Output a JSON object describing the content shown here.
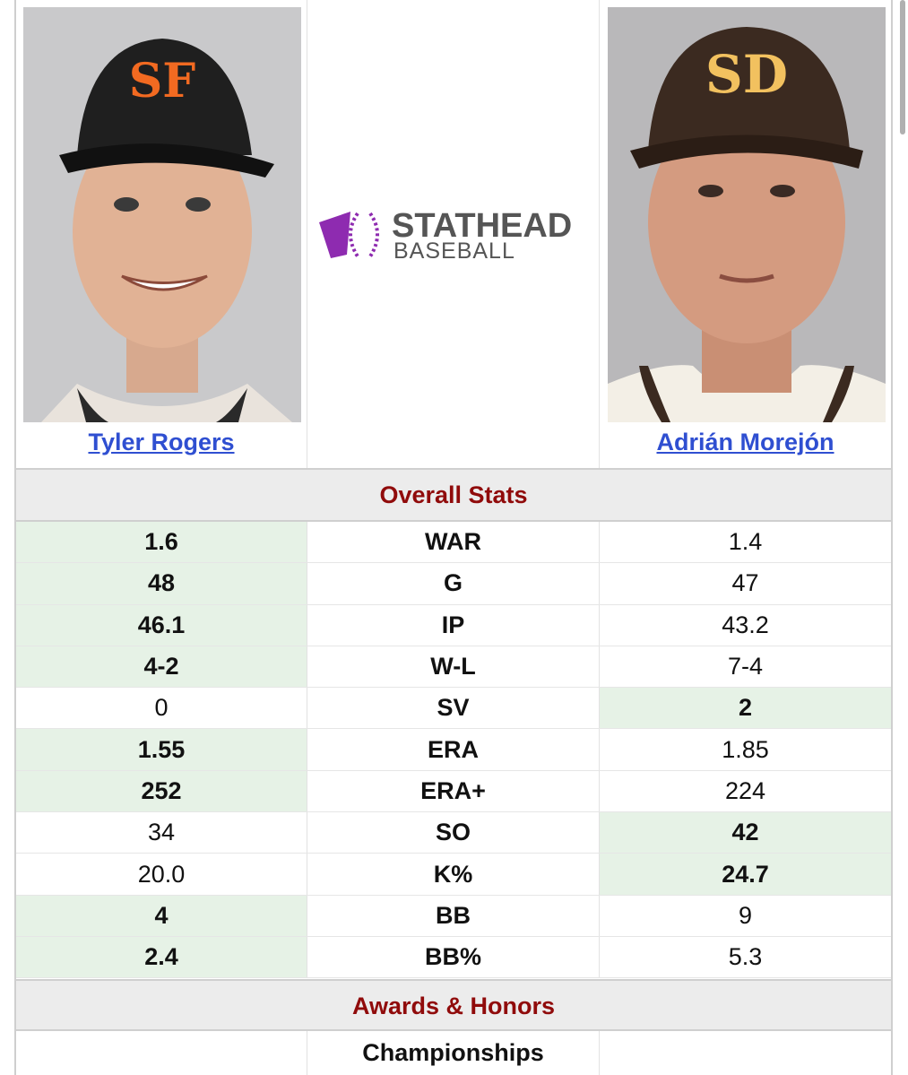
{
  "players": {
    "left": {
      "name": "Tyler Rogers",
      "team_logo": "SF",
      "cap_color": "#1f1f1f",
      "logo_color": "#f26a21"
    },
    "right": {
      "name": "Adrián Morejón",
      "team_logo": "SD",
      "cap_color": "#3b2a20",
      "logo_color": "#f2c15f"
    }
  },
  "logo": {
    "line1": "STATHEAD",
    "line2": "BASEBALL",
    "accent": "#8e2bb0",
    "text_color": "#555555"
  },
  "sections": {
    "overall": "Overall Stats",
    "awards": "Awards & Honors"
  },
  "colors": {
    "section_title": "#900b0b",
    "link": "#2f4fd1",
    "highlight": "#e6f2e6"
  },
  "stats": [
    {
      "label": "WAR",
      "left": "1.6",
      "right": "1.4",
      "best": "left"
    },
    {
      "label": "G",
      "left": "48",
      "right": "47",
      "best": "left"
    },
    {
      "label": "IP",
      "left": "46.1",
      "right": "43.2",
      "best": "left"
    },
    {
      "label": "W-L",
      "left": "4-2",
      "right": "7-4",
      "best": "left"
    },
    {
      "label": "SV",
      "left": "0",
      "right": "2",
      "best": "right"
    },
    {
      "label": "ERA",
      "left": "1.55",
      "right": "1.85",
      "best": "left"
    },
    {
      "label": "ERA+",
      "left": "252",
      "right": "224",
      "best": "left"
    },
    {
      "label": "SO",
      "left": "34",
      "right": "42",
      "best": "right"
    },
    {
      "label": "K%",
      "left": "20.0",
      "right": "24.7",
      "best": "right"
    },
    {
      "label": "BB",
      "left": "4",
      "right": "9",
      "best": "left"
    },
    {
      "label": "BB%",
      "left": "2.4",
      "right": "5.3",
      "best": "left"
    }
  ],
  "awards": {
    "championships_label": "Championships"
  }
}
